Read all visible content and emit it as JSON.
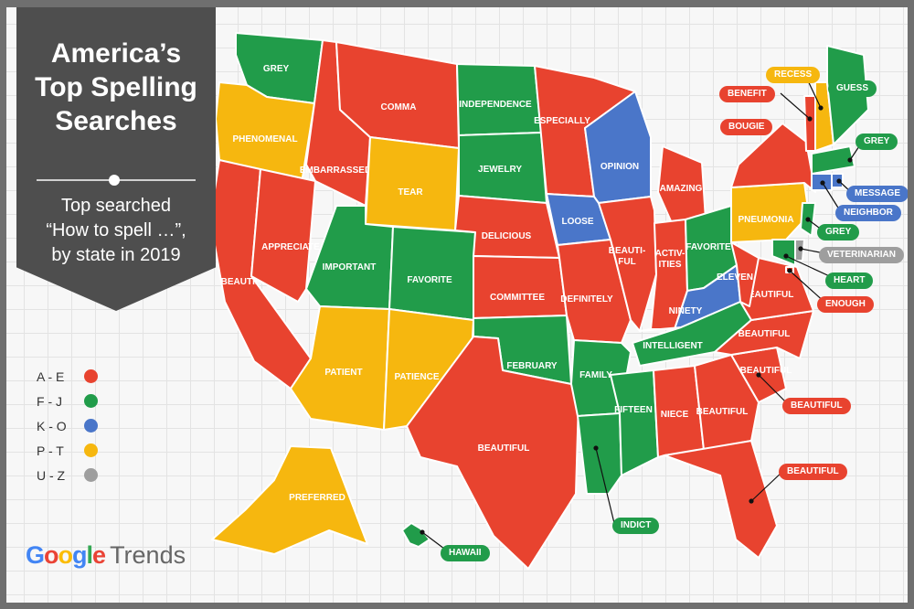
{
  "title": "America’s\nTop Spelling\nSearches",
  "subtitle": "Top searched\n“How to spell …”,\nby state in 2019",
  "brand": {
    "google": "Google",
    "product": "Trends"
  },
  "colors": {
    "red": "#e8432f",
    "green": "#219c4a",
    "blue": "#4a76c9",
    "yellow": "#f6b70f",
    "gray": "#9e9e9e"
  },
  "legend": [
    {
      "label": "A - E",
      "color": "#e8432f"
    },
    {
      "label": "F - J",
      "color": "#219c4a"
    },
    {
      "label": "K - O",
      "color": "#4a76c9"
    },
    {
      "label": "P - T",
      "color": "#f6b70f"
    },
    {
      "label": "U - Z",
      "color": "#9e9e9e"
    }
  ],
  "states": [
    {
      "id": "wa",
      "word": "GREY",
      "color": "#219c4a"
    },
    {
      "id": "or",
      "word": "PHENOMENAL",
      "color": "#f6b70f"
    },
    {
      "id": "ca",
      "word": "BEAUTIFUL",
      "color": "#e8432f"
    },
    {
      "id": "nv",
      "word": "APPRECIATE",
      "color": "#e8432f"
    },
    {
      "id": "id",
      "word": "EMBARRASSED",
      "color": "#e8432f"
    },
    {
      "id": "mt",
      "word": "COMMA",
      "color": "#e8432f"
    },
    {
      "id": "wy",
      "word": "TEAR",
      "color": "#f6b70f"
    },
    {
      "id": "ut",
      "word": "IMPORTANT",
      "color": "#219c4a"
    },
    {
      "id": "co",
      "word": "FAVORITE",
      "color": "#219c4a"
    },
    {
      "id": "az",
      "word": "PATIENT",
      "color": "#f6b70f"
    },
    {
      "id": "nm",
      "word": "PATIENCE",
      "color": "#f6b70f"
    },
    {
      "id": "nd",
      "word": "INDEPENDENCE",
      "color": "#219c4a"
    },
    {
      "id": "sd",
      "word": "JEWELRY",
      "color": "#219c4a"
    },
    {
      "id": "ne",
      "word": "DELICIOUS",
      "color": "#e8432f"
    },
    {
      "id": "ks",
      "word": "COMMITTEE",
      "color": "#e8432f"
    },
    {
      "id": "ok",
      "word": "FEBRUARY",
      "color": "#219c4a"
    },
    {
      "id": "tx",
      "word": "BEAUTIFUL",
      "color": "#e8432f"
    },
    {
      "id": "mn",
      "word": "ESPECIALLY",
      "color": "#e8432f"
    },
    {
      "id": "ia",
      "word": "LOOSE",
      "color": "#4a76c9"
    },
    {
      "id": "mo",
      "word": "DEFINITELY",
      "color": "#e8432f"
    },
    {
      "id": "ar",
      "word": "FAMILY",
      "color": "#219c4a"
    },
    {
      "id": "la",
      "word": "INDICT",
      "color": "#219c4a"
    },
    {
      "id": "wi",
      "word": "OPINION",
      "color": "#4a76c9"
    },
    {
      "id": "il",
      "word": "BEAUTI-\nFUL",
      "color": "#e8432f"
    },
    {
      "id": "mi",
      "word": "AMAZING",
      "color": "#e8432f"
    },
    {
      "id": "in",
      "word": "ACTIV-\nITIES",
      "color": "#e8432f"
    },
    {
      "id": "oh",
      "word": "FAVORITE",
      "color": "#219c4a"
    },
    {
      "id": "ky",
      "word": "NINETY",
      "color": "#4a76c9"
    },
    {
      "id": "tn",
      "word": "INTELLIGENT",
      "color": "#219c4a"
    },
    {
      "id": "ms",
      "word": "FIFTEEN",
      "color": "#219c4a"
    },
    {
      "id": "al",
      "word": "NIECE",
      "color": "#e8432f"
    },
    {
      "id": "ga",
      "word": "BEAUTIFUL",
      "color": "#e8432f"
    },
    {
      "id": "fl",
      "word": "BEAUTIFUL",
      "color": "#e8432f"
    },
    {
      "id": "sc",
      "word": "BEAUTIFUL",
      "color": "#e8432f"
    },
    {
      "id": "nc",
      "word": "BEAUTIFUL",
      "color": "#e8432f"
    },
    {
      "id": "va",
      "word": "BEAUTIFUL",
      "color": "#e8432f"
    },
    {
      "id": "wv",
      "word": "ELEVEN",
      "color": "#e8432f"
    },
    {
      "id": "pa",
      "word": "PNEUMONIA",
      "color": "#f6b70f"
    },
    {
      "id": "ny",
      "word": "BOUGIE",
      "color": "#e8432f"
    },
    {
      "id": "vt",
      "word": "BENEFIT",
      "color": "#e8432f"
    },
    {
      "id": "nh",
      "word": "RECESS",
      "color": "#f6b70f"
    },
    {
      "id": "me",
      "word": "GUESS",
      "color": "#219c4a"
    },
    {
      "id": "ma",
      "word": "GREY",
      "color": "#219c4a"
    },
    {
      "id": "ri",
      "word": "MESSAGE",
      "color": "#4a76c9"
    },
    {
      "id": "ct",
      "word": "NEIGHBOR",
      "color": "#4a76c9"
    },
    {
      "id": "nj",
      "word": "GREY",
      "color": "#219c4a"
    },
    {
      "id": "de",
      "word": "VETERINARIAN",
      "color": "#9e9e9e"
    },
    {
      "id": "md",
      "word": "HEART",
      "color": "#219c4a"
    },
    {
      "id": "dc",
      "word": "ENOUGH",
      "color": "#e8432f"
    },
    {
      "id": "ak",
      "word": "PREFERRED",
      "color": "#f6b70f"
    },
    {
      "id": "hi",
      "word": "HAWAII",
      "color": "#219c4a"
    }
  ]
}
